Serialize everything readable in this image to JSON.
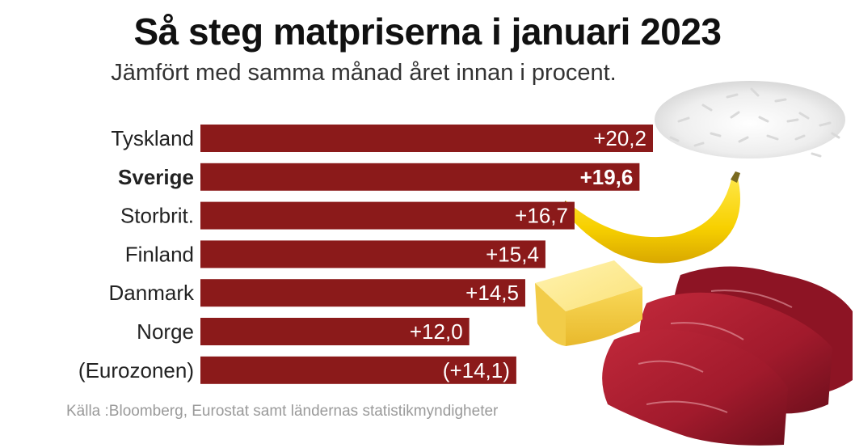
{
  "title": "Så steg matpriserna i januari 2023",
  "subtitle": "Jämfört med samma månad året innan i procent.",
  "source": "Källa :Bloomberg, Eurostat samt ländernas statistikmyndigheter",
  "colors": {
    "bar": "#8b1a1a"
  },
  "chart_data": {
    "type": "bar",
    "orientation": "horizontal",
    "title": "Så steg matpriserna i januari 2023",
    "subtitle": "Jämfört med samma månad året innan i procent.",
    "categories": [
      "Tyskland",
      "Sverige",
      "Storbrit.",
      "Finland",
      "Danmark",
      "Norge",
      "(Eurozonen)"
    ],
    "values": [
      20.2,
      19.6,
      16.7,
      15.4,
      14.5,
      12.0,
      14.1
    ],
    "value_labels": [
      "+20,2",
      "+19,6",
      "+16,7",
      "+15,4",
      "+14,5",
      "+12,0",
      "(+14,1)"
    ],
    "highlight": "Sverige",
    "xlim": [
      0,
      20.2
    ],
    "grid": false,
    "legend": "none"
  },
  "illustrations": [
    "rice-icon",
    "banana-icon",
    "butter-icon",
    "meat-icon"
  ]
}
